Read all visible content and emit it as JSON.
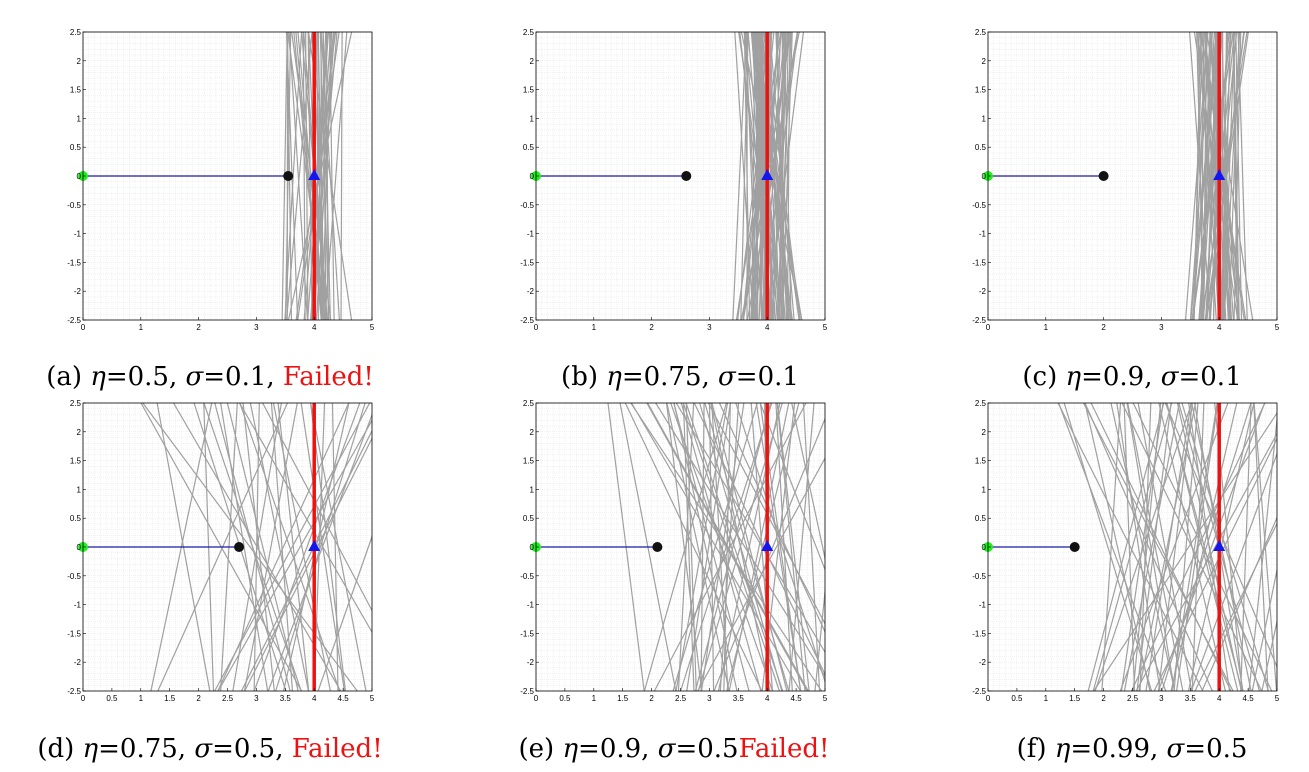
{
  "colors": {
    "samples": "#a0a0a0",
    "target": "#ee1111",
    "path": "#1a1aa8",
    "start": "#22ee22",
    "end": "#111111",
    "goal": "#1515ee",
    "grid": "#e4e4e4",
    "failed_text": "#ee1111"
  },
  "panels": [
    {
      "id": "a",
      "caption": {
        "label": "(a)",
        "eta_value": "=0.5,",
        "sigma_value": "=0.1,",
        "failed": "Failed!"
      },
      "chart_data": {
        "type": "line",
        "xlim": [
          0,
          5
        ],
        "ylim": [
          -2.5,
          2.5
        ],
        "xticks": [
          "0",
          "1",
          "2",
          "3",
          "4",
          "5"
        ],
        "yticks": [
          "2.5",
          "2",
          "1.5",
          "1",
          "0.5",
          "0",
          "-0.5",
          "-1",
          "-1.5",
          "-2",
          "-2.5"
        ],
        "grid": true,
        "target_line_x": 4,
        "start_point": [
          0,
          0
        ],
        "end_point": [
          3.55,
          0
        ],
        "goal_marker": [
          4,
          0
        ],
        "sample_line_count": 45,
        "sample_line_center_x": 4,
        "sample_line_spread": 0.45
      }
    },
    {
      "id": "b",
      "caption": {
        "label": "(b)",
        "eta_value": "=0.75,",
        "sigma_value": "=0.1",
        "failed": ""
      },
      "chart_data": {
        "type": "line",
        "xlim": [
          0,
          5
        ],
        "ylim": [
          -2.5,
          2.5
        ],
        "xticks": [
          "0",
          "1",
          "2",
          "3",
          "4",
          "5"
        ],
        "yticks": [
          "2.5",
          "2",
          "1.5",
          "1",
          "0.5",
          "0",
          "-0.5",
          "-1",
          "-1.5",
          "-2",
          "-2.5"
        ],
        "grid": true,
        "target_line_x": 4,
        "start_point": [
          0,
          0
        ],
        "end_point": [
          2.6,
          0
        ],
        "goal_marker": [
          4,
          0
        ],
        "sample_line_count": 90,
        "sample_line_center_x": 4,
        "sample_line_spread": 0.45
      }
    },
    {
      "id": "c",
      "caption": {
        "label": "(c)",
        "eta_value": "=0.9,",
        "sigma_value": "=0.1",
        "failed": ""
      },
      "chart_data": {
        "type": "line",
        "xlim": [
          0,
          5
        ],
        "ylim": [
          -2.5,
          2.5
        ],
        "xticks": [
          "0",
          "1",
          "2",
          "3",
          "4",
          "5"
        ],
        "yticks": [
          "2.5",
          "2",
          "1.5",
          "1",
          "0.5",
          "0",
          "-0.5",
          "-1",
          "-1.5",
          "-2",
          "-2.5"
        ],
        "grid": true,
        "target_line_x": 4,
        "start_point": [
          0,
          0
        ],
        "end_point": [
          2.0,
          0
        ],
        "goal_marker": [
          4,
          0
        ],
        "sample_line_count": 70,
        "sample_line_center_x": 4,
        "sample_line_spread": 0.42
      }
    },
    {
      "id": "d",
      "caption": {
        "label": "(d)",
        "eta_value": "=0.75,",
        "sigma_value": "=0.5,",
        "failed": "Failed!"
      },
      "chart_data": {
        "type": "line",
        "xlim": [
          0,
          5
        ],
        "ylim": [
          -2.5,
          2.5
        ],
        "xticks": [
          "0",
          "0.5",
          "1",
          "1.5",
          "2",
          "2.5",
          "3",
          "3.5",
          "4",
          "4.5",
          "5"
        ],
        "yticks": [
          "2.5",
          "2",
          "1.5",
          "1",
          "0.5",
          "0",
          "-0.5",
          "-1",
          "-1.5",
          "-2",
          "-2.5"
        ],
        "grid": true,
        "target_line_x": 4,
        "start_point": [
          0,
          0
        ],
        "end_point": [
          2.7,
          0
        ],
        "goal_marker": [
          4,
          0
        ],
        "sample_line_count": 40,
        "sample_line_center_x": 3.4,
        "sample_line_spread": 1.7
      }
    },
    {
      "id": "e",
      "caption": {
        "label": "(e)",
        "eta_value": "=0.9,",
        "sigma_value": "=0.5",
        "failed": "Failed!"
      },
      "chart_data": {
        "type": "line",
        "xlim": [
          0,
          5
        ],
        "ylim": [
          -2.5,
          2.5
        ],
        "xticks": [
          "0",
          "0.5",
          "1",
          "1.5",
          "2",
          "2.5",
          "3",
          "3.5",
          "4",
          "4.5",
          "5"
        ],
        "yticks": [
          "2.5",
          "2",
          "1.5",
          "1",
          "0.5",
          "0",
          "-0.5",
          "-1",
          "-1.5",
          "-2",
          "-2.5"
        ],
        "grid": true,
        "target_line_x": 4,
        "start_point": [
          0,
          0
        ],
        "end_point": [
          2.1,
          0
        ],
        "goal_marker": [
          4,
          0
        ],
        "sample_line_count": 60,
        "sample_line_center_x": 3.5,
        "sample_line_spread": 1.7
      }
    },
    {
      "id": "f",
      "caption": {
        "label": "(f)",
        "eta_value": "=0.99,",
        "sigma_value": "=0.5",
        "failed": ""
      },
      "chart_data": {
        "type": "line",
        "xlim": [
          0,
          5
        ],
        "ylim": [
          -2.5,
          2.5
        ],
        "xticks": [
          "0",
          "0.5",
          "1",
          "1.5",
          "2",
          "2.5",
          "3",
          "3.5",
          "4",
          "4.5",
          "5"
        ],
        "yticks": [
          "2.5",
          "2",
          "1.5",
          "1",
          "0.5",
          "0",
          "-0.5",
          "-1",
          "-1.5",
          "-2",
          "-2.5"
        ],
        "grid": true,
        "target_line_x": 4,
        "start_point": [
          0,
          0
        ],
        "end_point": [
          1.5,
          0
        ],
        "goal_marker": [
          4,
          0
        ],
        "sample_line_count": 60,
        "sample_line_center_x": 3.4,
        "sample_line_spread": 1.8
      }
    }
  ]
}
